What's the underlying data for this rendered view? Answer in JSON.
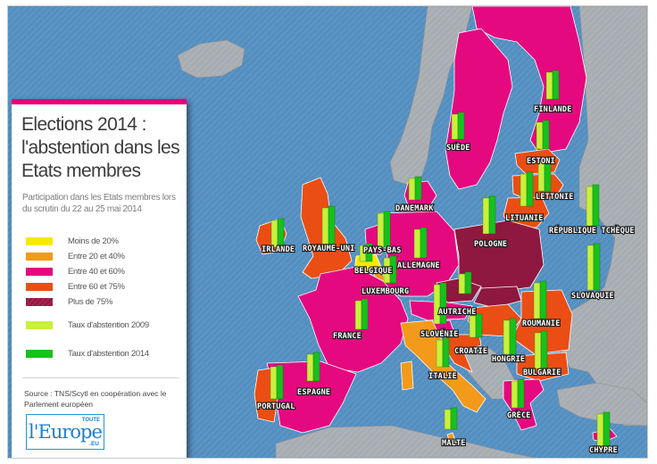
{
  "title": "Elections 2014 : l'abstention dans les Etats membres",
  "subtitle": "Participation dans les Etats membres lors du scrutin du 22 au 25 mai 2014",
  "legend": {
    "categories": [
      {
        "label": "Moins de 20%",
        "color": "#f7ea00"
      },
      {
        "label": "Entre 20 et 40%",
        "color": "#f39a1a"
      },
      {
        "label": "Entre 40 et 60%",
        "color": "#e5097f"
      },
      {
        "label": "Entre 60 et 75%",
        "color": "#ea4e14"
      },
      {
        "label": "Plus de 75%",
        "color": "#8f1840"
      }
    ],
    "bars": [
      {
        "label": "Taux d'abstention 2009",
        "color": "#c8f03c"
      },
      {
        "label": "Taux d'abstention 2014",
        "color": "#18c01c"
      }
    ]
  },
  "source": "Source : TNS/Scytl en coopération avec le Parlement européen",
  "logo": {
    "main": "l'Europe",
    "top": "TOUTE",
    "bottom": ".EU"
  },
  "countries": [
    {
      "name": "FINLANDE"
    },
    {
      "name": "SUÈDE"
    },
    {
      "name": "ESTONI"
    },
    {
      "name": "LETTONIE"
    },
    {
      "name": "DANEMARK"
    },
    {
      "name": "LITUANIE"
    },
    {
      "name": "RÉPUBLIQUE TCHÈQUE"
    },
    {
      "name": "IRLANDE"
    },
    {
      "name": "ROYAUME-UNI"
    },
    {
      "name": "PAYS-BAS"
    },
    {
      "name": "POLOGNE"
    },
    {
      "name": "ALLEMAGNE"
    },
    {
      "name": "BELGIQUE"
    },
    {
      "name": "SLOVAQUIE"
    },
    {
      "name": "LUXEMBOURG"
    },
    {
      "name": "AUTRICHE"
    },
    {
      "name": "ROUMANIE"
    },
    {
      "name": "SLOVÉNIE"
    },
    {
      "name": "FRANCE"
    },
    {
      "name": "HONGRIE"
    },
    {
      "name": "CROATIE"
    },
    {
      "name": "BULGARIE"
    },
    {
      "name": "ITALIE"
    },
    {
      "name": "ESPAGNE"
    },
    {
      "name": "PORTUGAL"
    },
    {
      "name": "GRÈCE"
    },
    {
      "name": "MALTE"
    },
    {
      "name": "CHYPRE"
    }
  ]
}
